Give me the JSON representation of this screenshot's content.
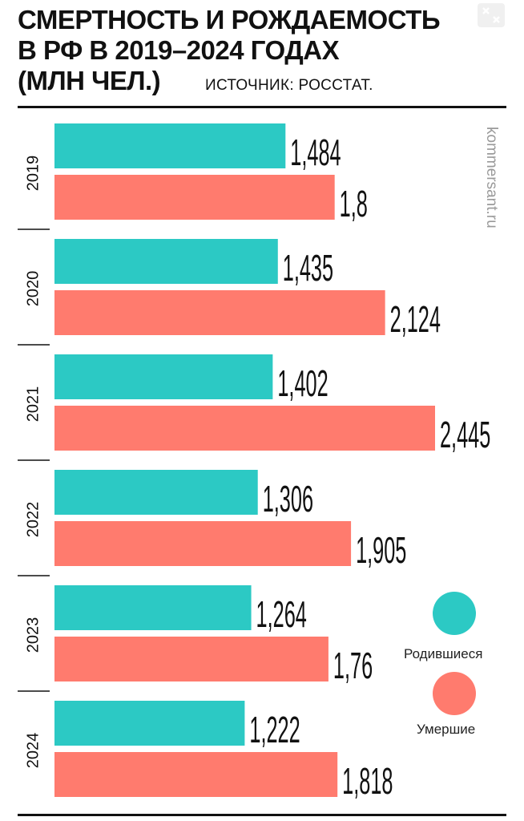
{
  "title": {
    "line1": "СМЕРТНОСТЬ И РОЖДАЕМОСТЬ",
    "line2": "В РФ В 2019–2024 ГОДАХ",
    "line3": "(МЛН ЧЕЛ.)"
  },
  "source": "ИСТОЧНИК: РОССТАТ.",
  "watermark": "kommersant.ru",
  "legend": {
    "births_label": "Родившиеся",
    "deaths_label": "Умершие"
  },
  "colors": {
    "births": "#2cc9c4",
    "deaths": "#ff7b6e"
  },
  "chart_data": {
    "type": "bar",
    "orientation": "horizontal",
    "title": "СМЕРТНОСТЬ И РОЖДАЕМОСТЬ В РФ В 2019–2024 ГОДАХ (МЛН ЧЕЛ.)",
    "categories": [
      "2019",
      "2020",
      "2021",
      "2022",
      "2023",
      "2024"
    ],
    "series": [
      {
        "name": "Родившиеся",
        "values": [
          1.484,
          1.435,
          1.402,
          1.306,
          1.264,
          1.222
        ],
        "labels": [
          "1,484",
          "1,435",
          "1,402",
          "1,306",
          "1,264",
          "1,222"
        ]
      },
      {
        "name": "Умершие",
        "values": [
          1.8,
          2.124,
          2.445,
          1.905,
          1.76,
          1.818
        ],
        "labels": [
          "1,8",
          "2,124",
          "2,445",
          "1,905",
          "1,76",
          "1,818"
        ]
      }
    ],
    "xlim": [
      0,
      2.445
    ],
    "grid": false,
    "legend_position": "right"
  }
}
